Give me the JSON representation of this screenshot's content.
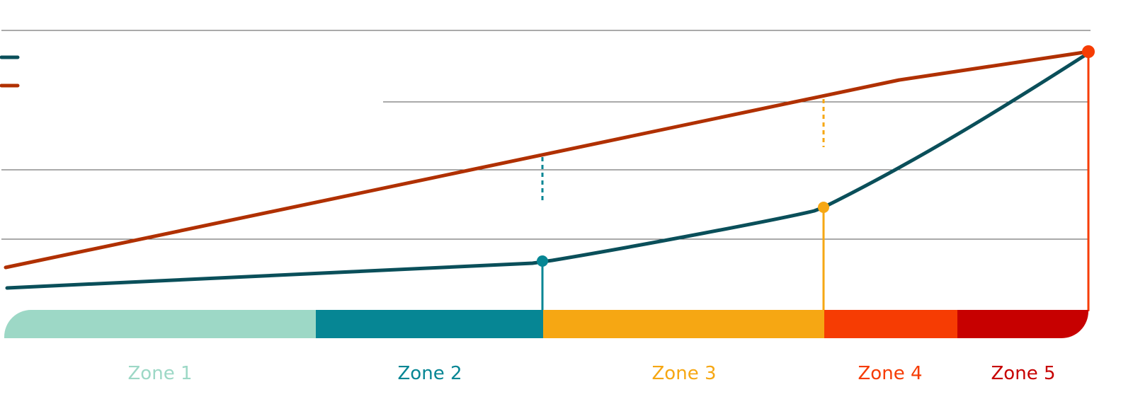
{
  "zones": [
    {
      "label": "Zone 1",
      "color": "#9dd8c6"
    },
    {
      "label": "Zone 2",
      "color": "#068694"
    },
    {
      "label": "Zone 3",
      "color": "#f6a713"
    },
    {
      "label": "Zone 4",
      "color": "#f63c03"
    },
    {
      "label": "Zone 5",
      "color": "#c70000"
    }
  ]
}
